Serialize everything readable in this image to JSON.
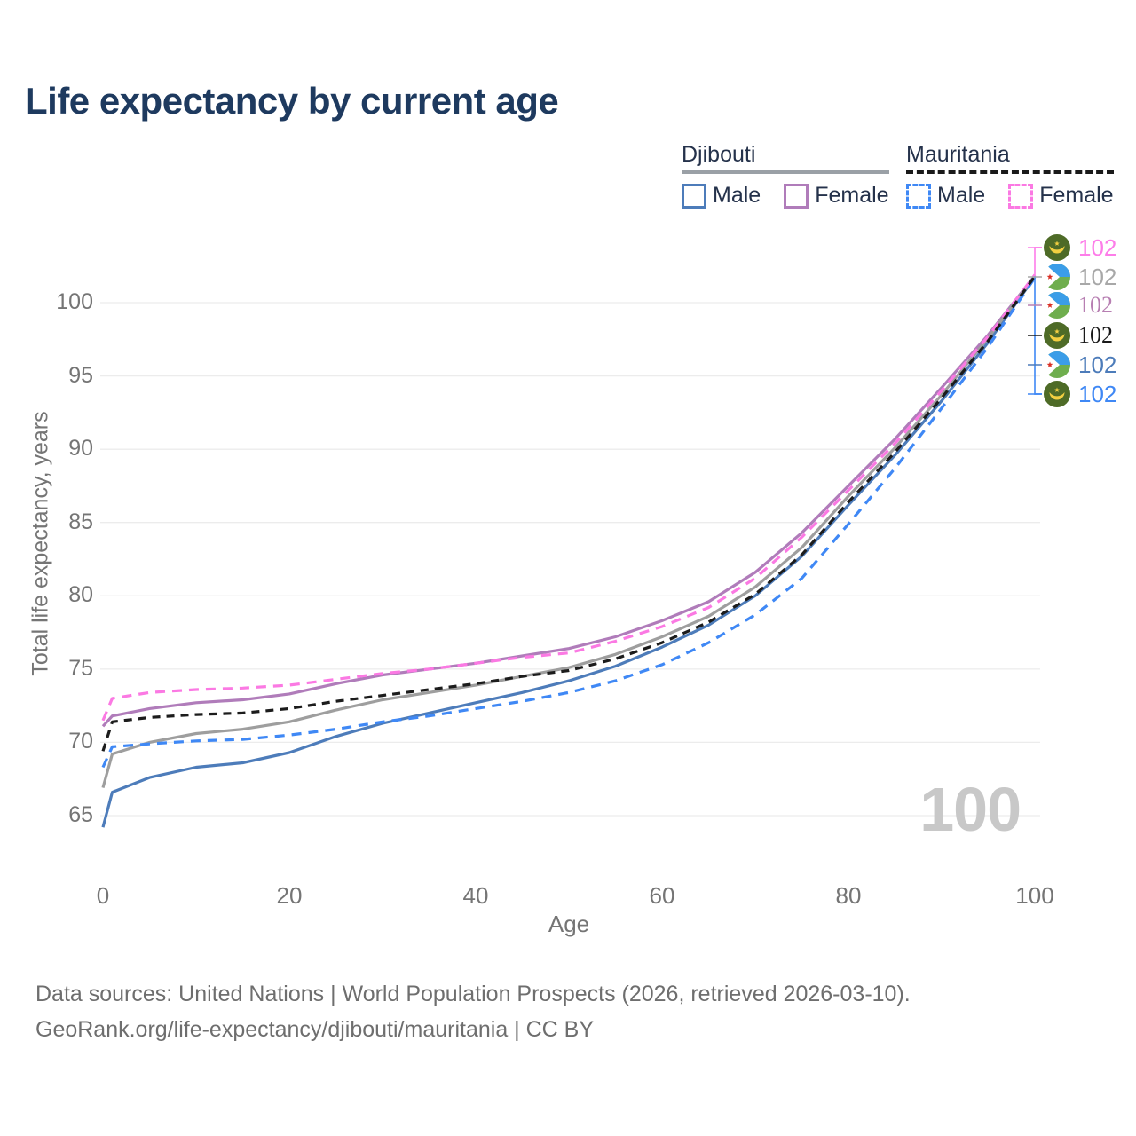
{
  "title": "Life expectancy by current age",
  "legend": {
    "groups": [
      {
        "label": "Djibouti",
        "line_style": "solid",
        "underline_color": "#9aa0a6",
        "items": [
          {
            "label": "Male",
            "color": "#4d7cba",
            "dashed": false
          },
          {
            "label": "Female",
            "color": "#b07cba",
            "dashed": false
          }
        ]
      },
      {
        "label": "Mauritania",
        "line_style": "dashed",
        "underline_color": "#1a1a1a",
        "items": [
          {
            "label": "Male",
            "color": "#3f88f5",
            "dashed": true
          },
          {
            "label": "Female",
            "color": "#fb79e3",
            "dashed": true
          }
        ]
      }
    ]
  },
  "chart_data": {
    "type": "line",
    "title": "Life expectancy by current age",
    "xlabel": "Age",
    "ylabel": "Total life expectancy, years",
    "xlim": [
      0,
      100
    ],
    "ylim": [
      61,
      105
    ],
    "x_ticks": [
      0,
      20,
      40,
      60,
      80,
      100
    ],
    "y_ticks": [
      65,
      70,
      75,
      80,
      85,
      90,
      95,
      100
    ],
    "grid": "horizontal-only",
    "gridline_color": "#ececec",
    "x": [
      0,
      1,
      5,
      10,
      15,
      20,
      25,
      30,
      35,
      40,
      45,
      50,
      55,
      60,
      65,
      70,
      75,
      80,
      85,
      90,
      95,
      100
    ],
    "series": [
      {
        "name": "Djibouti Male",
        "country": "Djibouti",
        "sex": "male",
        "color": "#4d7cba",
        "dashed": false,
        "values": [
          64.2,
          66.6,
          67.6,
          68.3,
          68.6,
          69.3,
          70.4,
          71.3,
          72.0,
          72.7,
          73.4,
          74.2,
          75.2,
          76.5,
          78.0,
          80.0,
          82.7,
          86.2,
          89.6,
          93.3,
          97.3,
          101.75
        ]
      },
      {
        "name": "Djibouti Female",
        "country": "Djibouti",
        "sex": "female",
        "color": "#b07cba",
        "dashed": false,
        "values": [
          71.1,
          71.8,
          72.3,
          72.7,
          72.9,
          73.3,
          74.0,
          74.6,
          75.0,
          75.4,
          75.9,
          76.4,
          77.2,
          78.3,
          79.6,
          81.6,
          84.3,
          87.5,
          90.7,
          94.2,
          97.8,
          101.85
        ]
      },
      {
        "name": "Djibouti (both sexes)",
        "country": "Djibouti",
        "sex": "both",
        "color": "#9e9e9e",
        "dashed": false,
        "values": [
          66.9,
          69.2,
          70.0,
          70.6,
          70.9,
          71.4,
          72.2,
          72.9,
          73.4,
          73.9,
          74.5,
          75.1,
          76.0,
          77.2,
          78.6,
          80.6,
          83.3,
          86.8,
          90.1,
          93.7,
          97.6,
          101.8
        ]
      },
      {
        "name": "Mauritania Male",
        "country": "Mauritania",
        "sex": "male",
        "color": "#3f88f5",
        "dashed": true,
        "values": [
          68.3,
          69.7,
          69.9,
          70.1,
          70.2,
          70.5,
          70.9,
          71.4,
          71.8,
          72.3,
          72.8,
          73.4,
          74.2,
          75.3,
          76.8,
          78.7,
          81.2,
          84.9,
          88.7,
          92.8,
          97.0,
          101.7
        ]
      },
      {
        "name": "Mauritania Female",
        "country": "Mauritania",
        "sex": "female",
        "color": "#fb79e3",
        "dashed": true,
        "values": [
          71.5,
          73.0,
          73.4,
          73.6,
          73.7,
          73.9,
          74.3,
          74.7,
          75.0,
          75.4,
          75.8,
          76.1,
          76.9,
          77.9,
          79.2,
          81.2,
          84.0,
          87.2,
          90.4,
          94.0,
          97.7,
          101.9
        ]
      },
      {
        "name": "Mauritania (both sexes)",
        "country": "Mauritania",
        "sex": "both",
        "color": "#1c1c1c",
        "dashed": true,
        "values": [
          69.4,
          71.4,
          71.7,
          71.9,
          72.0,
          72.3,
          72.8,
          73.2,
          73.6,
          74.0,
          74.5,
          74.9,
          75.7,
          76.8,
          78.2,
          80.1,
          82.8,
          86.4,
          89.8,
          93.5,
          97.4,
          101.8
        ]
      }
    ],
    "end_labels": [
      {
        "flag": "mauritania",
        "series": "Mauritania Female",
        "value": "102",
        "color": "#fd7de9",
        "serif": false
      },
      {
        "flag": "djibouti",
        "series": "Djibouti (both sexes)",
        "value": "102",
        "color": "#a8a8a8",
        "serif": false
      },
      {
        "flag": "djibouti",
        "series": "Djibouti Female",
        "value": "102",
        "color": "#b77fb2",
        "serif": true
      },
      {
        "flag": "mauritania",
        "series": "Mauritania (both sexes)",
        "value": "102",
        "color": "#1a1a1a",
        "serif": true
      },
      {
        "flag": "djibouti",
        "series": "Djibouti Male",
        "value": "102",
        "color": "#4d7cba",
        "serif": false
      },
      {
        "flag": "mauritania",
        "series": "Mauritania Male",
        "value": "102",
        "color": "#3f88f5",
        "serif": false
      }
    ],
    "watermark": "100"
  },
  "footer": {
    "line1": "Data sources: United Nations | World Population Prospects (2026, retrieved 2026-03-10).",
    "line2": "GeoRank.org/life-expectancy/djibouti/mauritania | CC BY"
  }
}
